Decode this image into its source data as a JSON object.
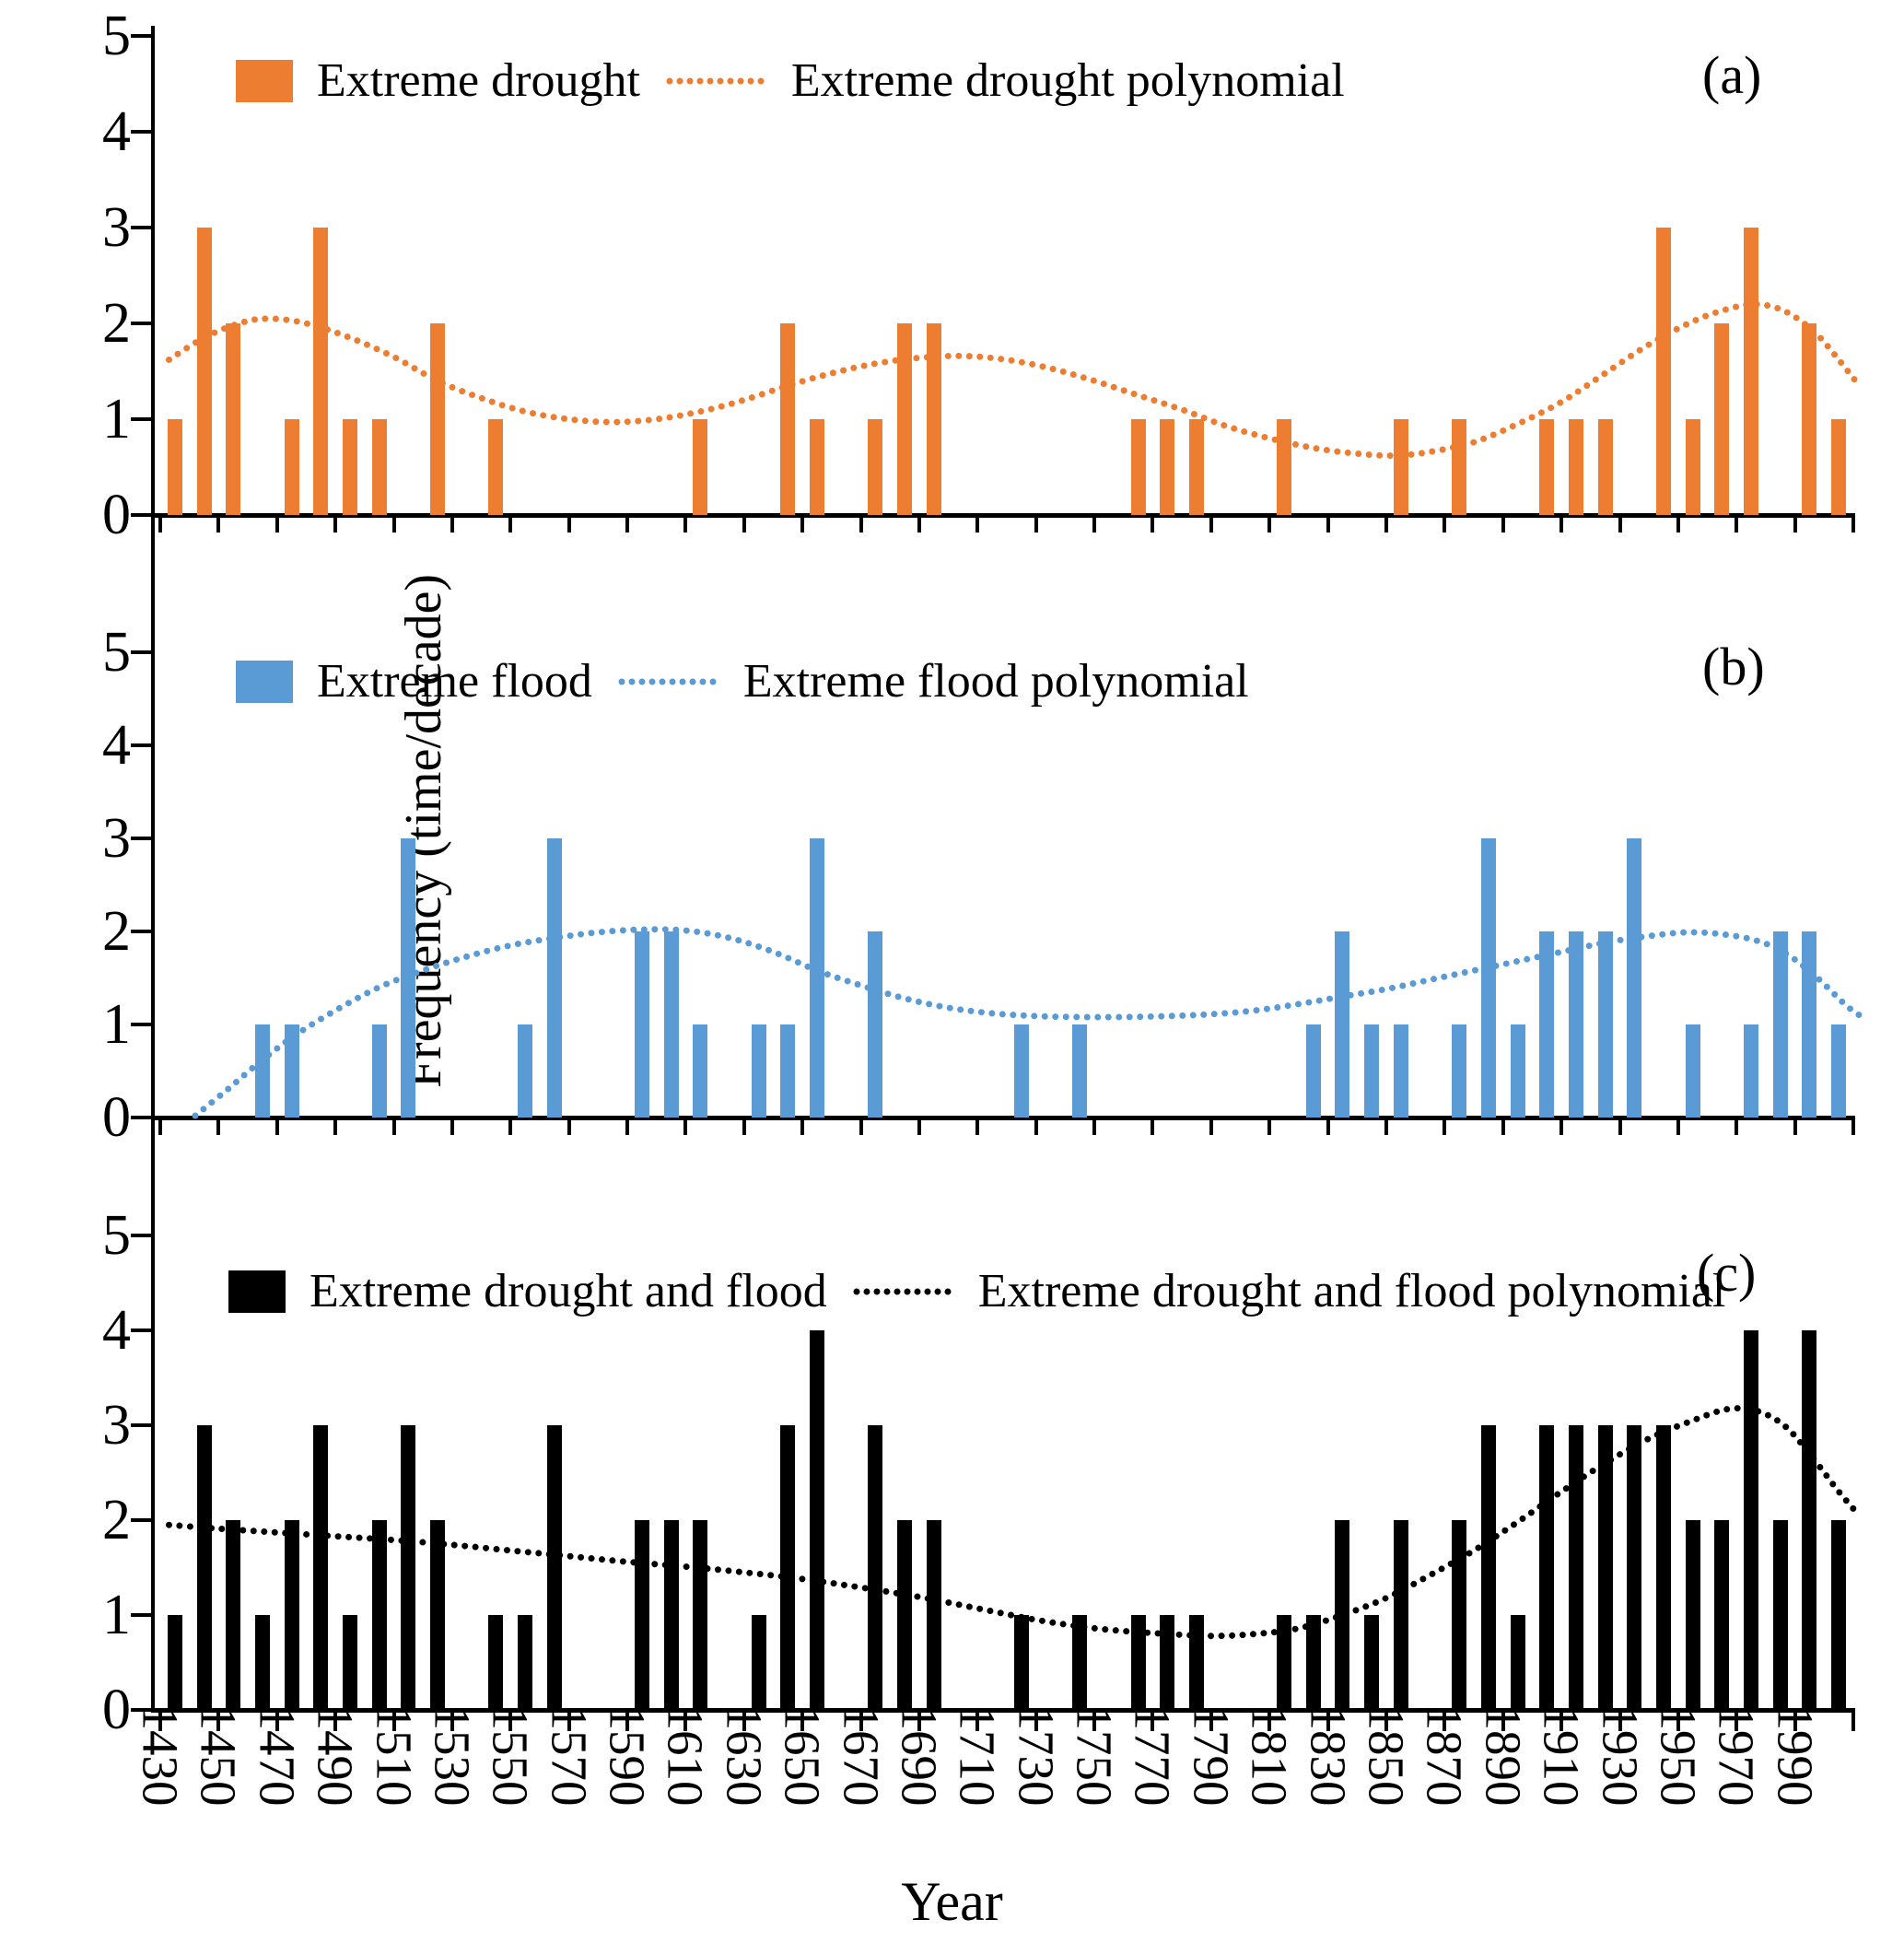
{
  "figure": {
    "ylabel": "Frequency (time/decade)",
    "xlabel": "Year"
  },
  "chart_data": {
    "type": "bar",
    "grid": false,
    "ylim": [
      0,
      5
    ],
    "y_ticks": [
      0,
      1,
      2,
      3,
      4,
      5
    ],
    "categories": [
      1430,
      1440,
      1450,
      1460,
      1470,
      1480,
      1490,
      1500,
      1510,
      1520,
      1530,
      1540,
      1550,
      1560,
      1570,
      1580,
      1590,
      1600,
      1610,
      1620,
      1630,
      1640,
      1650,
      1660,
      1670,
      1680,
      1690,
      1700,
      1710,
      1720,
      1730,
      1740,
      1750,
      1760,
      1770,
      1780,
      1790,
      1800,
      1810,
      1820,
      1830,
      1840,
      1850,
      1860,
      1870,
      1880,
      1890,
      1900,
      1910,
      1920,
      1930,
      1940,
      1950,
      1960,
      1970,
      1980,
      1990,
      2000
    ],
    "x_tick_labels": [
      "1430",
      "1450",
      "1470",
      "1490",
      "1510",
      "1530",
      "1550",
      "1570",
      "1590",
      "1610",
      "1630",
      "1650",
      "1670",
      "1690",
      "1710",
      "1730",
      "1750",
      "1770",
      "1790",
      "1810",
      "1830",
      "1850",
      "1870",
      "1890",
      "1910",
      "1930",
      "1950",
      "1970",
      "1990"
    ],
    "xlabel": "Year",
    "ylabel": "Frequency (time/decade)",
    "legend_position": "top-left-inside",
    "panels": [
      {
        "panel_label": "(a)",
        "series_name": "Extreme drought",
        "trend_name": "Extreme drought polynomial",
        "color": "#ED7D31",
        "values": [
          1,
          3,
          2,
          0,
          1,
          3,
          1,
          1,
          0,
          2,
          0,
          1,
          0,
          0,
          0,
          0,
          0,
          0,
          1,
          0,
          0,
          2,
          1,
          0,
          1,
          2,
          2,
          0,
          0,
          0,
          0,
          0,
          0,
          1,
          1,
          1,
          0,
          0,
          1,
          0,
          0,
          0,
          1,
          0,
          1,
          0,
          0,
          1,
          1,
          1,
          0,
          3,
          1,
          2,
          3,
          0,
          2,
          1
        ],
        "trend_points": [
          [
            1428,
            1.62
          ],
          [
            1440,
            1.85
          ],
          [
            1452,
            2.0
          ],
          [
            1462,
            2.05
          ],
          [
            1475,
            2.0
          ],
          [
            1490,
            1.85
          ],
          [
            1505,
            1.65
          ],
          [
            1520,
            1.4
          ],
          [
            1535,
            1.22
          ],
          [
            1550,
            1.08
          ],
          [
            1565,
            1.0
          ],
          [
            1580,
            0.97
          ],
          [
            1595,
            1.0
          ],
          [
            1610,
            1.08
          ],
          [
            1625,
            1.2
          ],
          [
            1640,
            1.35
          ],
          [
            1655,
            1.48
          ],
          [
            1670,
            1.58
          ],
          [
            1685,
            1.64
          ],
          [
            1700,
            1.66
          ],
          [
            1715,
            1.62
          ],
          [
            1730,
            1.53
          ],
          [
            1745,
            1.4
          ],
          [
            1760,
            1.25
          ],
          [
            1775,
            1.1
          ],
          [
            1790,
            0.93
          ],
          [
            1805,
            0.8
          ],
          [
            1820,
            0.7
          ],
          [
            1835,
            0.64
          ],
          [
            1848,
            0.62
          ],
          [
            1860,
            0.66
          ],
          [
            1875,
            0.76
          ],
          [
            1890,
            0.95
          ],
          [
            1905,
            1.18
          ],
          [
            1920,
            1.48
          ],
          [
            1935,
            1.78
          ],
          [
            1950,
            2.02
          ],
          [
            1962,
            2.15
          ],
          [
            1972,
            2.2
          ],
          [
            1982,
            2.12
          ],
          [
            1992,
            1.9
          ],
          [
            2000,
            1.62
          ],
          [
            2007,
            1.35
          ]
        ]
      },
      {
        "panel_label": "(b)",
        "series_name": "Extreme flood",
        "trend_name": "Extreme flood polynomial",
        "color": "#5B9BD5",
        "values": [
          0,
          0,
          0,
          1,
          1,
          0,
          0,
          1,
          3,
          0,
          0,
          0,
          1,
          3,
          0,
          0,
          2,
          2,
          1,
          0,
          1,
          1,
          3,
          0,
          2,
          0,
          0,
          0,
          0,
          1,
          0,
          1,
          0,
          0,
          0,
          0,
          0,
          0,
          0,
          1,
          2,
          1,
          1,
          0,
          1,
          3,
          1,
          2,
          2,
          2,
          3,
          0,
          1,
          0,
          1,
          2,
          2,
          1
        ],
        "trend_points": [
          [
            1437,
            0.02
          ],
          [
            1448,
            0.3
          ],
          [
            1460,
            0.62
          ],
          [
            1472,
            0.9
          ],
          [
            1485,
            1.15
          ],
          [
            1500,
            1.4
          ],
          [
            1515,
            1.58
          ],
          [
            1530,
            1.73
          ],
          [
            1545,
            1.85
          ],
          [
            1560,
            1.93
          ],
          [
            1575,
            1.99
          ],
          [
            1590,
            2.02
          ],
          [
            1605,
            2.01
          ],
          [
            1620,
            1.93
          ],
          [
            1635,
            1.78
          ],
          [
            1650,
            1.58
          ],
          [
            1665,
            1.42
          ],
          [
            1680,
            1.28
          ],
          [
            1695,
            1.18
          ],
          [
            1710,
            1.12
          ],
          [
            1725,
            1.09
          ],
          [
            1740,
            1.08
          ],
          [
            1755,
            1.08
          ],
          [
            1770,
            1.09
          ],
          [
            1785,
            1.11
          ],
          [
            1800,
            1.15
          ],
          [
            1815,
            1.22
          ],
          [
            1830,
            1.3
          ],
          [
            1845,
            1.38
          ],
          [
            1860,
            1.48
          ],
          [
            1875,
            1.58
          ],
          [
            1890,
            1.68
          ],
          [
            1905,
            1.78
          ],
          [
            1920,
            1.88
          ],
          [
            1935,
            1.95
          ],
          [
            1948,
            1.99
          ],
          [
            1960,
            1.97
          ],
          [
            1972,
            1.9
          ],
          [
            1982,
            1.76
          ],
          [
            1992,
            1.52
          ],
          [
            2002,
            1.22
          ],
          [
            2007,
            1.1
          ]
        ]
      },
      {
        "panel_label": "(c)",
        "series_name": "Extreme drought and flood",
        "trend_name": "Extreme drought and flood polynomial",
        "color": "#000000",
        "values": [
          1,
          3,
          2,
          1,
          2,
          3,
          1,
          2,
          3,
          2,
          0,
          1,
          1,
          3,
          0,
          0,
          2,
          2,
          2,
          0,
          1,
          3,
          4,
          0,
          3,
          2,
          2,
          0,
          0,
          1,
          0,
          1,
          0,
          1,
          1,
          1,
          0,
          0,
          1,
          1,
          2,
          1,
          2,
          0,
          2,
          3,
          1,
          3,
          3,
          3,
          3,
          3,
          2,
          2,
          4,
          2,
          4,
          2
        ],
        "trend_points": [
          [
            1428,
            1.95
          ],
          [
            1445,
            1.91
          ],
          [
            1465,
            1.87
          ],
          [
            1485,
            1.83
          ],
          [
            1505,
            1.79
          ],
          [
            1525,
            1.74
          ],
          [
            1545,
            1.68
          ],
          [
            1565,
            1.62
          ],
          [
            1585,
            1.56
          ],
          [
            1605,
            1.51
          ],
          [
            1625,
            1.45
          ],
          [
            1645,
            1.38
          ],
          [
            1665,
            1.29
          ],
          [
            1685,
            1.19
          ],
          [
            1705,
            1.07
          ],
          [
            1725,
            0.95
          ],
          [
            1745,
            0.86
          ],
          [
            1765,
            0.81
          ],
          [
            1785,
            0.78
          ],
          [
            1800,
            0.8
          ],
          [
            1815,
            0.86
          ],
          [
            1830,
            1.0
          ],
          [
            1845,
            1.18
          ],
          [
            1860,
            1.42
          ],
          [
            1875,
            1.68
          ],
          [
            1890,
            1.98
          ],
          [
            1905,
            2.3
          ],
          [
            1920,
            2.6
          ],
          [
            1935,
            2.86
          ],
          [
            1950,
            3.05
          ],
          [
            1962,
            3.17
          ],
          [
            1972,
            3.15
          ],
          [
            1982,
            2.98
          ],
          [
            1992,
            2.62
          ],
          [
            2000,
            2.3
          ],
          [
            2007,
            2.05
          ]
        ]
      }
    ]
  }
}
